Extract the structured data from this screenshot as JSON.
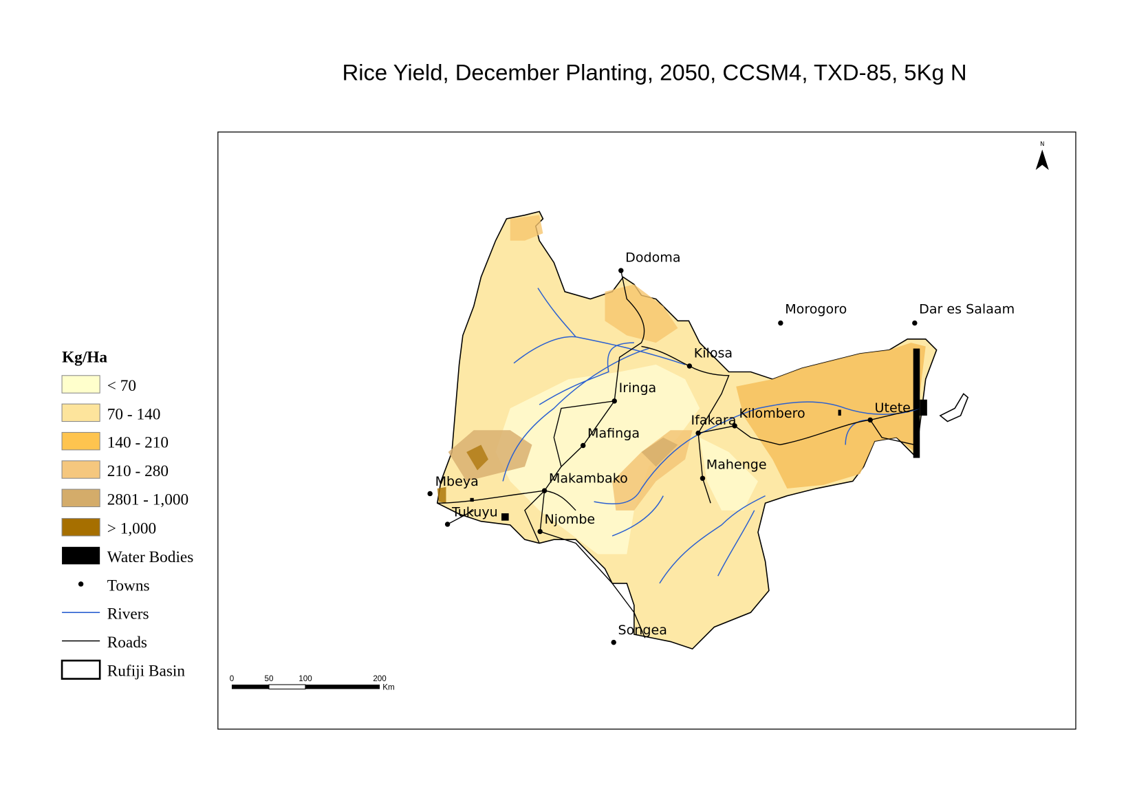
{
  "title": "Rice Yield, December Planting, 2050, CCSM4, TXD-85, 5Kg N",
  "north": "N",
  "legend": {
    "title": "Kg/Ha",
    "items": [
      "< 70",
      "70 - 140",
      "140 - 210",
      "210 - 280",
      "2801 - 1,000",
      "> 1,000",
      "Water Bodies",
      "Towns",
      "Rivers",
      "Roads",
      "Rufiji Basin"
    ]
  },
  "towns": [
    "Dodoma",
    "Morogoro",
    "Dar es Salaam",
    "Kilosa",
    "Iringa",
    "Ifakara",
    "Kilombero",
    "Utete",
    "Mafinga",
    "Mahenge",
    "Makambako",
    "Mbeya",
    "Tukuyu",
    "Njombe",
    "Songea"
  ],
  "scale_bar": {
    "ticks": [
      0,
      50,
      100,
      200
    ],
    "unit": "Km"
  }
}
